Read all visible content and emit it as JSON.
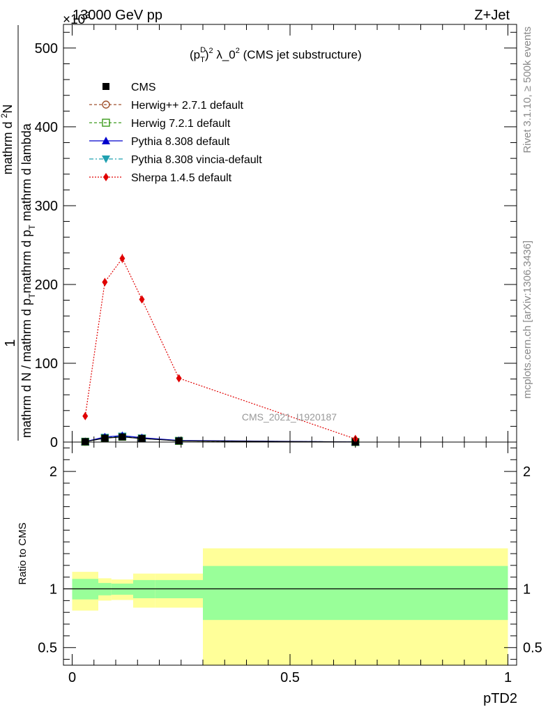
{
  "header": {
    "left_title": "13000 GeV pp",
    "right_title": "Z+Jet",
    "exponent_label": "×10",
    "exponent_power": "3",
    "watermark": "CMS_2021_I1920187",
    "side_label_top": "Rivet 3.1.10, ≥ 500k events",
    "side_label_bottom": "mcplots.cern.ch [arXiv:1306.3436]"
  },
  "chart_data": {
    "type": "line",
    "title_parts": {
      "p": "(p",
      "sup1": "D",
      "sub1": "T",
      "close": ")",
      "sup2": "2",
      "mid": " λ_0",
      "sup3": "2",
      "tail": " (CMS jet substructure)"
    },
    "xlabel": "pTD2",
    "ylabel_main": {
      "numerator": "1",
      "denominator_a": "mathrm d N / mathrm d p",
      "sub_a": "T",
      "denominator_b": "mathrm d N",
      "over_a": "mathrm d",
      "over_sub": "2",
      "over_b": "N",
      "rest": "mathrm d p",
      "rest_sub": "T",
      "rest_tail": " mathrm d lambda",
      "full_text": "mathrm d²N / mathrm d p_T mathrm d lambda"
    },
    "ylabel_ratio": "Ratio to CMS",
    "xlim": [
      -0.02,
      1.02
    ],
    "ylim_main": [
      0,
      530
    ],
    "ylim_ratio": [
      0.35,
      2.25
    ],
    "x_ticks": [
      0,
      0.5,
      1
    ],
    "x_tick_labels": [
      "0",
      "0.5",
      "1"
    ],
    "y_ticks_main": [
      0,
      100,
      200,
      300,
      400,
      500
    ],
    "y_tick_labels_main": [
      "0",
      "100",
      "200",
      "300",
      "400",
      "500"
    ],
    "y_ticks_ratio": [
      0.5,
      1,
      2
    ],
    "y_tick_labels_ratio": [
      "0.5",
      "1",
      "2"
    ],
    "bin_edges": [
      0.0,
      0.06,
      0.09,
      0.14,
      0.19,
      0.3,
      1.0
    ],
    "x": [
      0.03,
      0.075,
      0.115,
      0.16,
      0.245,
      0.65
    ],
    "series": [
      {
        "name": "CMS",
        "color": "#000000",
        "marker": "square-filled",
        "dash": "none",
        "values": [
          0.5,
          5.0,
          6.5,
          4.5,
          1.5,
          0.1
        ]
      },
      {
        "name": "Herwig++ 2.7.1 default",
        "color": "#a0522d",
        "marker": "circle-open",
        "dash": "4,3",
        "values": [
          0.4,
          5.5,
          7.0,
          4.8,
          1.6,
          0.1
        ]
      },
      {
        "name": "Herwig 7.2.1 default",
        "color": "#3a9a1a",
        "marker": "square-open",
        "dash": "4,3",
        "values": [
          0.4,
          5.2,
          6.8,
          4.6,
          1.5,
          0.1
        ]
      },
      {
        "name": "Pythia 8.308 default",
        "color": "#0000cc",
        "marker": "triangle-up",
        "dash": "none",
        "values": [
          0.6,
          6.5,
          8.2,
          5.5,
          2.0,
          0.15
        ]
      },
      {
        "name": "Pythia 8.308 vincia-default",
        "color": "#1fa0b0",
        "marker": "triangle-down",
        "dash": "6,3,2,3",
        "values": [
          0.5,
          6.0,
          7.5,
          5.0,
          1.8,
          0.12
        ]
      },
      {
        "name": "Sherpa 1.4.5 default",
        "color": "#e00000",
        "marker": "diamond",
        "dash": "2,2",
        "values": [
          33,
          203,
          233,
          181,
          81,
          4
        ]
      }
    ],
    "ratio_bands": {
      "green_low": [
        0.91,
        0.945,
        0.95,
        0.92,
        0.92,
        0.735
      ],
      "green_high": [
        1.085,
        1.05,
        1.045,
        1.075,
        1.075,
        1.195
      ],
      "yellow_low": [
        0.815,
        0.9,
        0.905,
        0.84,
        0.84,
        0.0
      ],
      "yellow_high": [
        1.145,
        1.09,
        1.08,
        1.13,
        1.13,
        1.345
      ]
    },
    "colors": {
      "green_band": "#99ff99",
      "yellow_band": "#ffff99"
    }
  }
}
